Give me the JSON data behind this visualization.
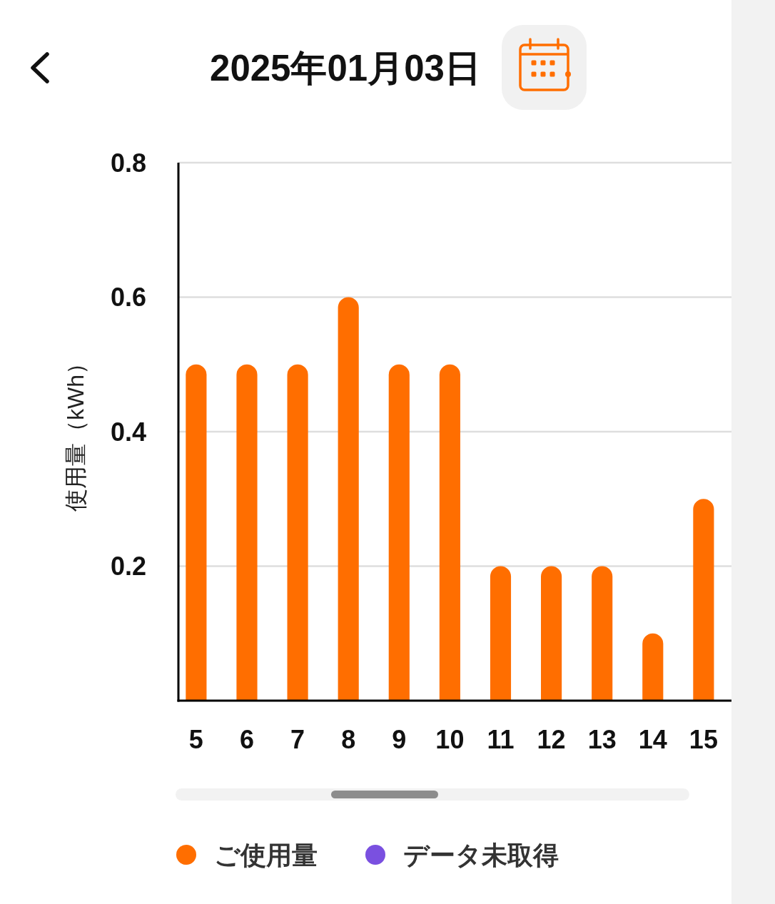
{
  "chart_data": {
    "type": "bar",
    "title": "2025年01月03日",
    "ylabel": "使用量（kWh）",
    "categories": [
      "5",
      "6",
      "7",
      "8",
      "9",
      "10",
      "11",
      "12",
      "13",
      "14",
      "15"
    ],
    "series": [
      {
        "name": "ご使用量",
        "color": "#ff6e00",
        "values": [
          0.5,
          0.5,
          0.5,
          0.6,
          0.5,
          0.5,
          0.2,
          0.2,
          0.2,
          0.1,
          0.3
        ]
      },
      {
        "name": "データ未取得",
        "color": "#7a50e0",
        "values": [
          null,
          null,
          null,
          null,
          null,
          null,
          null,
          null,
          null,
          null,
          null
        ]
      }
    ],
    "ylim": [
      0,
      0.8
    ],
    "yticks": [
      0.2,
      0.4,
      0.6,
      0.8
    ],
    "grid": "y",
    "legend": "bottom"
  }
}
